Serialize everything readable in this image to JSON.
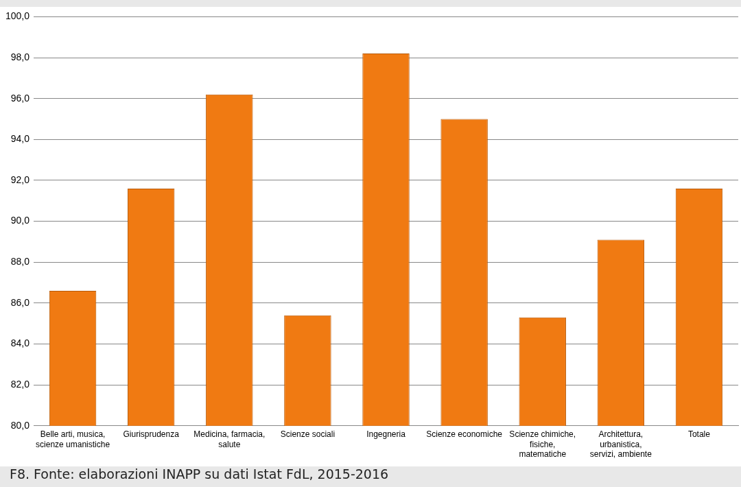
{
  "chart_data": {
    "type": "bar",
    "categories": [
      "Belle arti, musica, scienze umanistiche",
      "Giurisprudenza",
      "Medicina, farmacia, salute",
      "Scienze sociali",
      "Ingegneria",
      "Scienze economiche",
      "Scienze chimiche, fisiche, matematiche",
      "Architettura, urbanistica, servizi, ambiente",
      "Totale"
    ],
    "values": [
      86.6,
      91.6,
      96.2,
      85.4,
      98.2,
      95.0,
      85.3,
      89.1,
      91.6
    ],
    "color": "#f07a12",
    "ylim": [
      80,
      100
    ],
    "yticks": [
      {
        "value": 80,
        "label": "80,0"
      },
      {
        "value": 82,
        "label": "82,0"
      },
      {
        "value": 84,
        "label": "84,0"
      },
      {
        "value": 86,
        "label": "86,0"
      },
      {
        "value": 88,
        "label": "88,0"
      },
      {
        "value": 90,
        "label": "90,0"
      },
      {
        "value": 92,
        "label": "92,0"
      },
      {
        "value": 94,
        "label": "94,0"
      },
      {
        "value": 96,
        "label": "96,0"
      },
      {
        "value": 98,
        "label": "98,0"
      },
      {
        "value": 100,
        "label": "100,0"
      }
    ],
    "grid": "y",
    "legend": false,
    "annotations": [
      "F8. Fonte: elaborazioni INAPP su dati Istat FdL, 2015-2016"
    ]
  }
}
